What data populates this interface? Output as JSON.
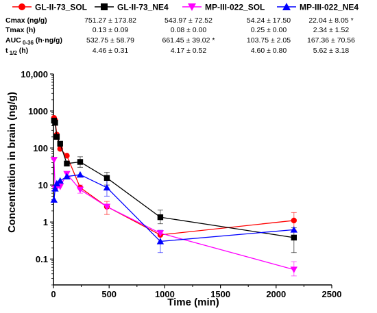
{
  "chart_data": {
    "type": "line",
    "xlabel": "Time (min)",
    "ylabel": "Concentration in brain (ng/g)",
    "xlim": [
      0,
      2500
    ],
    "ylim": [
      0.02,
      10000
    ],
    "y_scale": "log",
    "x_ticks": [
      "0",
      "500",
      "1000",
      "1500",
      "2000",
      "2500"
    ],
    "y_ticks": [
      "10,000",
      "1000",
      "100",
      "10",
      "1",
      "0.1"
    ],
    "legend": {
      "placement": "top"
    },
    "series": [
      {
        "name": "GL-II-73_SOL",
        "color": "#ff0000",
        "marker": "circle",
        "points": [
          {
            "x": 5,
            "y": 650
          },
          {
            "x": 15,
            "y": 560
          },
          {
            "x": 30,
            "y": 230
          },
          {
            "x": 60,
            "y": 95
          },
          {
            "x": 120,
            "y": 62
          },
          {
            "x": 240,
            "y": 8.5
          },
          {
            "x": 480,
            "y": 2.6
          },
          {
            "x": 960,
            "y": 0.45
          },
          {
            "x": 2160,
            "y": 1.1
          }
        ]
      },
      {
        "name": "GL-II-73_NE4",
        "color": "#000000",
        "marker": "square",
        "points": [
          {
            "x": 5,
            "y": 550
          },
          {
            "x": 15,
            "y": 480
          },
          {
            "x": 30,
            "y": 200
          },
          {
            "x": 60,
            "y": 130
          },
          {
            "x": 120,
            "y": 38
          },
          {
            "x": 240,
            "y": 42
          },
          {
            "x": 480,
            "y": 15.5
          },
          {
            "x": 960,
            "y": 1.35
          },
          {
            "x": 2160,
            "y": 0.38
          }
        ]
      },
      {
        "name": "MP-III-022_SOL",
        "color": "#ff00ff",
        "marker": "triangle-down",
        "points": [
          {
            "x": 5,
            "y": 48
          },
          {
            "x": 15,
            "y": 8
          },
          {
            "x": 30,
            "y": 8.5
          },
          {
            "x": 60,
            "y": 9
          },
          {
            "x": 120,
            "y": 20
          },
          {
            "x": 240,
            "y": 7.5
          },
          {
            "x": 480,
            "y": 2.6
          },
          {
            "x": 960,
            "y": 0.5
          },
          {
            "x": 2160,
            "y": 0.052
          }
        ]
      },
      {
        "name": "MP-III-022_NE4",
        "color": "#0000ff",
        "marker": "triangle-up",
        "points": [
          {
            "x": 5,
            "y": 4
          },
          {
            "x": 15,
            "y": 8
          },
          {
            "x": 30,
            "y": 11
          },
          {
            "x": 60,
            "y": 13
          },
          {
            "x": 120,
            "y": 17
          },
          {
            "x": 240,
            "y": 19
          },
          {
            "x": 480,
            "y": 8.5
          },
          {
            "x": 960,
            "y": 0.3
          },
          {
            "x": 2160,
            "y": 0.62
          }
        ]
      }
    ],
    "error_bars": [
      {
        "series": 1,
        "x": 240,
        "low": 30,
        "high": 58
      },
      {
        "series": 1,
        "x": 480,
        "low": 10,
        "high": 22
      },
      {
        "series": 1,
        "x": 960,
        "low": 0.9,
        "high": 2.1
      },
      {
        "series": 1,
        "x": 2160,
        "low": 0.15,
        "high": 0.7
      },
      {
        "series": 0,
        "x": 2160,
        "low": 0.6,
        "high": 1.8
      },
      {
        "series": 0,
        "x": 480,
        "low": 1.6,
        "high": 3.6
      },
      {
        "series": 3,
        "x": 480,
        "low": 5,
        "high": 14
      },
      {
        "series": 3,
        "x": 960,
        "low": 0.15,
        "high": 0.6
      },
      {
        "series": 2,
        "x": 2160,
        "low": 0.035,
        "high": 0.085
      },
      {
        "series": 2,
        "x": 240,
        "low": 6,
        "high": 10
      }
    ]
  },
  "pk_table": {
    "rows": [
      {
        "label_main": "Cmax (ng/g)",
        "label_sub": "",
        "label_tail": "",
        "values": [
          "751.27 ± 173.82",
          "543.97 ± 72.52",
          "54.24 ± 17.50",
          "22.04 ± 8.05 *"
        ]
      },
      {
        "label_main": "Tmax (h)",
        "label_sub": "",
        "label_tail": "",
        "values": [
          "0.13 ± 0.09",
          "0.08 ± 0.00",
          "0.25 ± 0.00",
          "2.34 ± 1.52"
        ]
      },
      {
        "label_main": "AUC",
        "label_sub": "0-36",
        "label_tail": " (h·ng/g)",
        "values": [
          "532.75 ± 58.79",
          "661.45  ± 39.02 *",
          "103.75 ± 2.05",
          "167.36 ± 70.56"
        ]
      },
      {
        "label_main": "t",
        "label_sub": "1/2",
        "label_tail": " (h)",
        "values": [
          "4.46 ± 0.31",
          "4.17 ± 0.52",
          "4.60 ± 0.80",
          "5.62 ± 3.18"
        ]
      }
    ]
  }
}
